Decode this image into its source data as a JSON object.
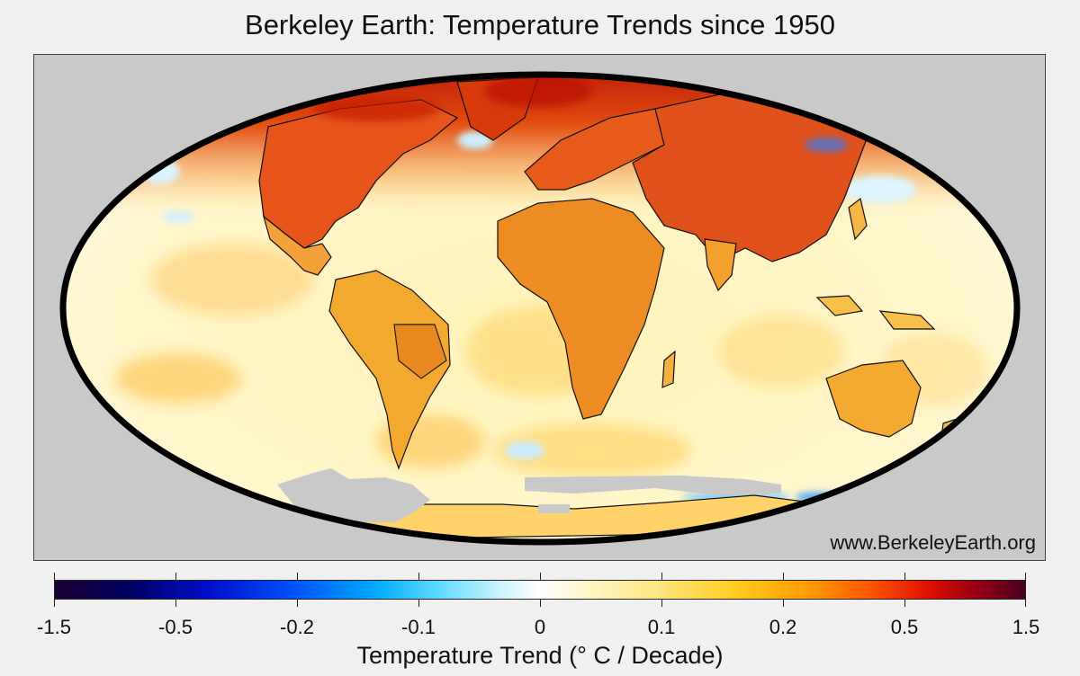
{
  "title": "Berkeley Earth: Temperature Trends since 1950",
  "source_url": "www.BerkeleyEarth.org",
  "colors": {
    "background": "#f0f0f0",
    "map_background": "#c9c9c9",
    "land_warm": "#e85a10",
    "ocean_base": "#fff2b0",
    "arctic_hot": "#cc2200"
  },
  "colorbar": {
    "label": "Temperature Trend (° C / Decade)",
    "ticks": [
      "-1.5",
      "-0.5",
      "-0.2",
      "-0.1",
      "0",
      "0.1",
      "0.2",
      "0.5",
      "1.5"
    ]
  }
}
